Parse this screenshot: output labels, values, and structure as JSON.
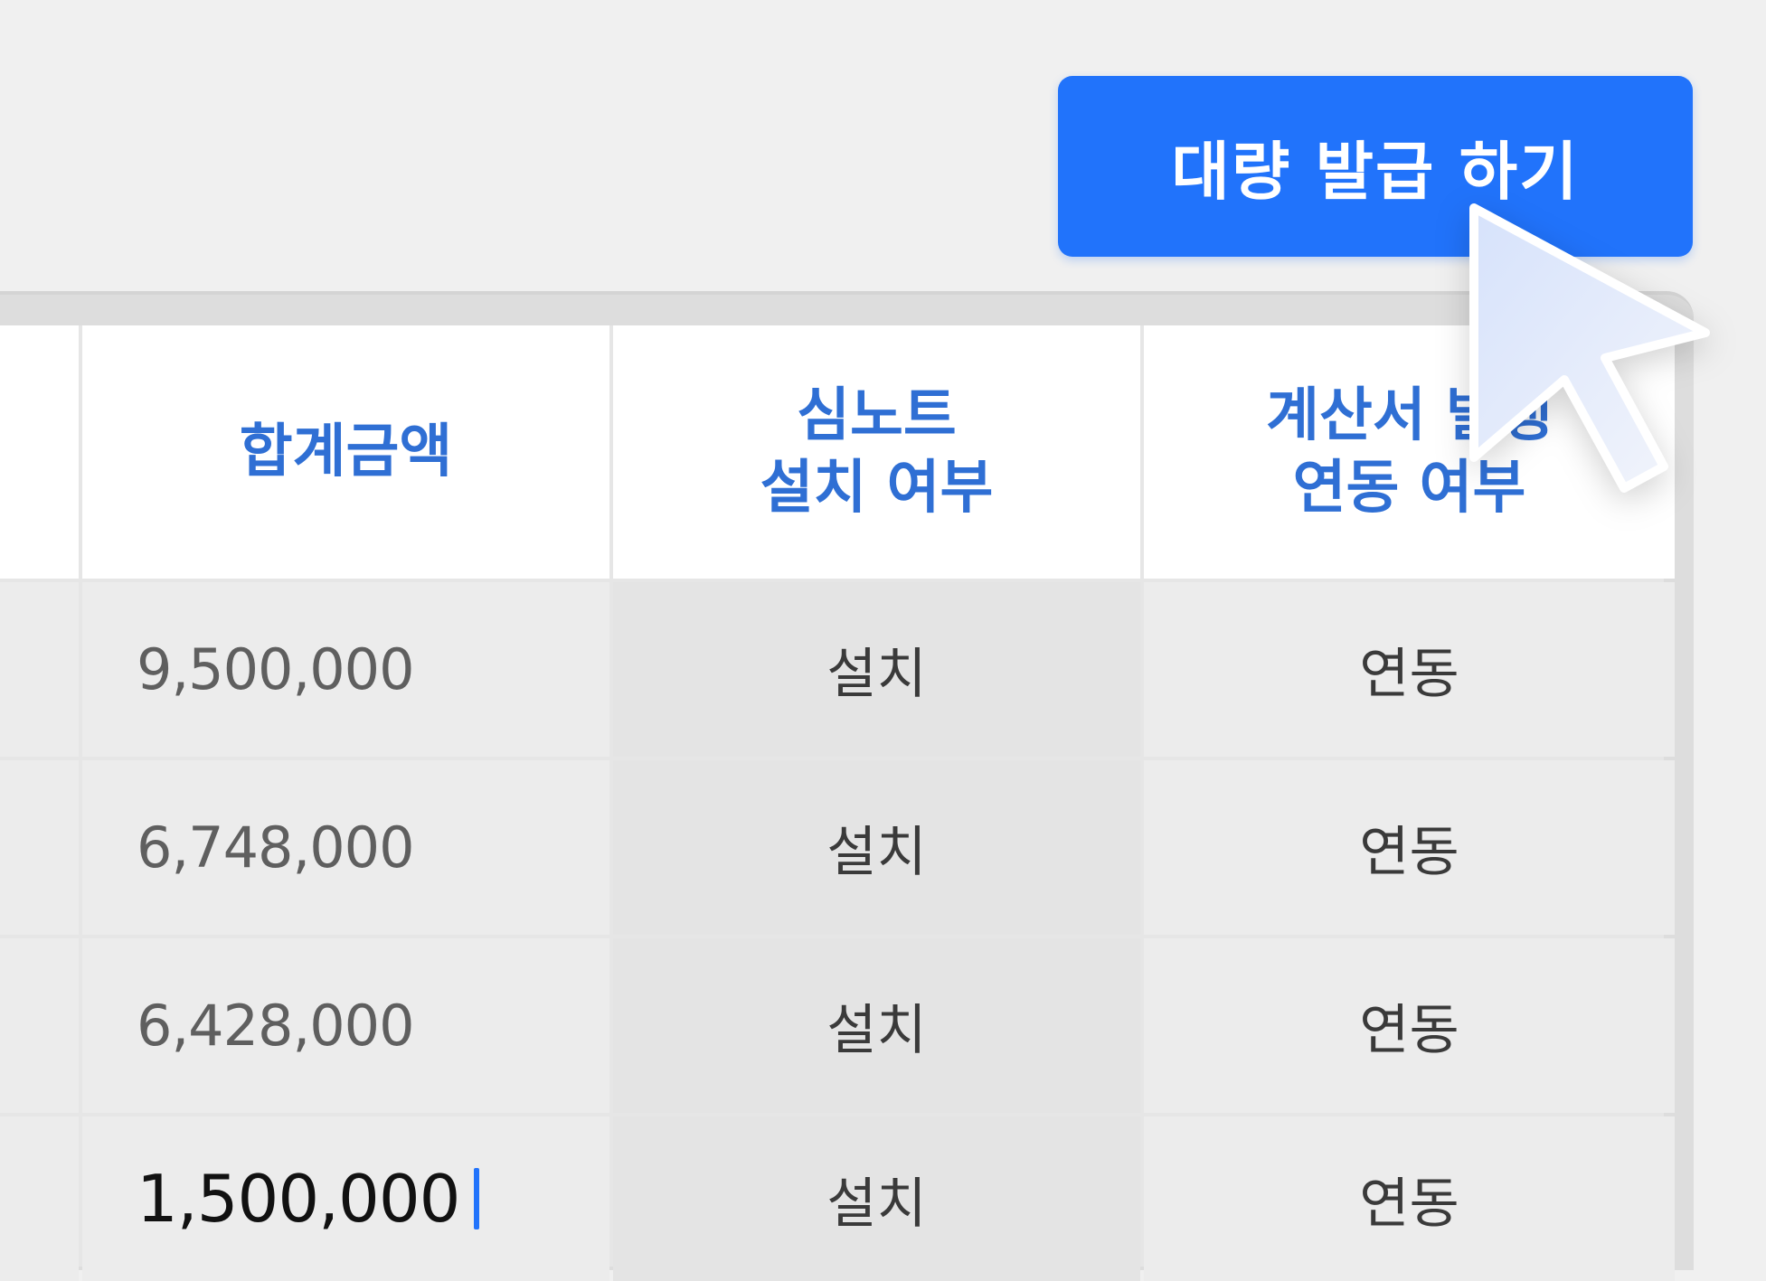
{
  "toolbar": {
    "bulk_issue_label": "대량 발급 하기"
  },
  "table": {
    "headers": {
      "total_amount": "합계금액",
      "simnote_install": [
        "심노트",
        "설치 여부"
      ],
      "invoice_link": [
        "계산서 발행",
        "연동 여부"
      ]
    },
    "rows": [
      {
        "amount": "9,500,000",
        "install": "설치",
        "link": "연동"
      },
      {
        "amount": "6,748,000",
        "install": "설치",
        "link": "연동"
      },
      {
        "amount": "6,428,000",
        "install": "설치",
        "link": "연동"
      },
      {
        "amount": "1,500,000",
        "install": "설치",
        "link": "연동"
      }
    ]
  },
  "colors": {
    "primary": "#2173fb",
    "header_text": "#2f6fd4"
  },
  "icons": {
    "pointer": "mouse-pointer-icon",
    "caret": "text-caret"
  }
}
